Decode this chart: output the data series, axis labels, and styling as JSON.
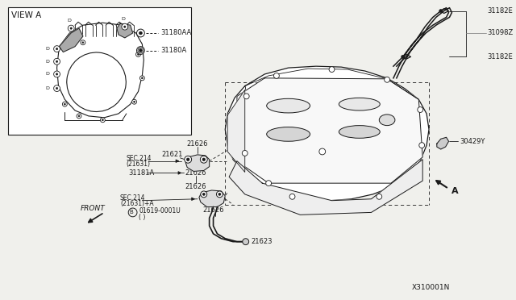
{
  "bg_color": "#f0f0ec",
  "col": "#1a1a1a",
  "footer_text": "X310001N",
  "view_a_label": "VIEW A",
  "legend": [
    {
      "label": "31180AA"
    },
    {
      "label": "31180A"
    }
  ],
  "right_labels": [
    "31182E",
    "31098Z",
    "31182E"
  ],
  "part_30429Y": "30429Y",
  "part_A": "A",
  "front_label": "FRONT"
}
